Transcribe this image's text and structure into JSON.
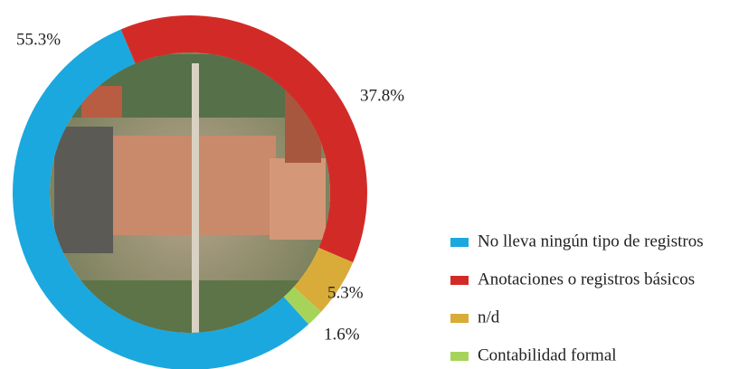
{
  "chart_data": {
    "type": "donut",
    "categories": [
      "No lleva ningún tipo de registros",
      "Anotaciones o registros básicos",
      "n/d",
      "Contabilidad formal"
    ],
    "values": [
      55.3,
      37.8,
      5.3,
      1.6
    ],
    "value_labels": [
      "55.3%",
      "37.8%",
      "5.3%",
      "1.6%"
    ],
    "colors": [
      "#1ba8de",
      "#d22b27",
      "#d9ab38",
      "#a6d45b"
    ],
    "legend": "right"
  }
}
